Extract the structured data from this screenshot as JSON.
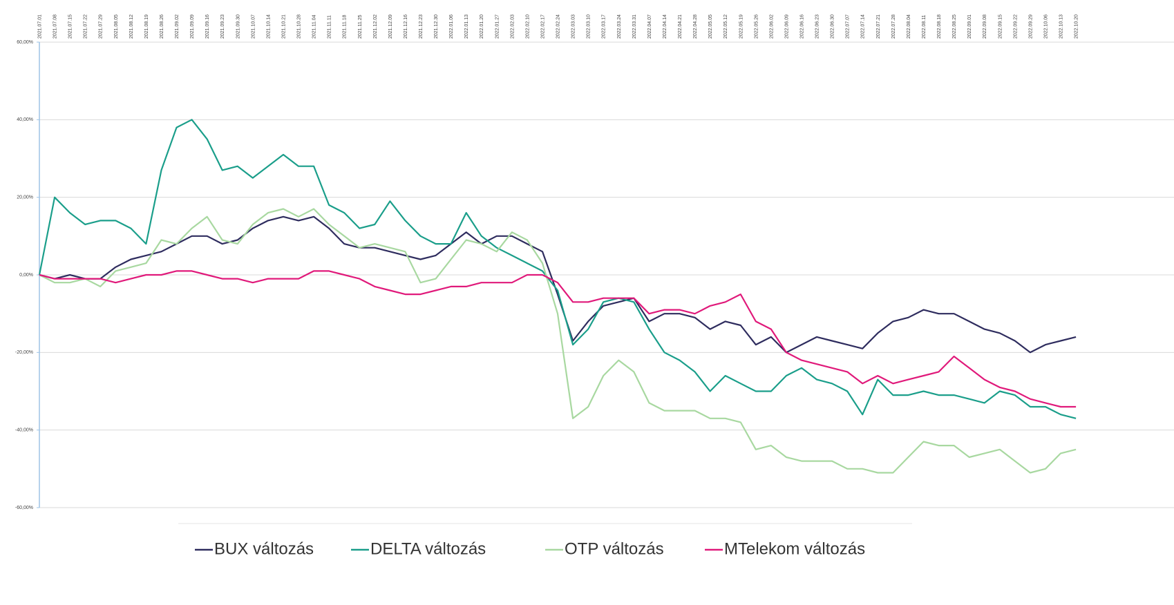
{
  "chart_data": {
    "type": "line",
    "categories": [
      "2021.07.01",
      "2021.07.08",
      "2021.07.15",
      "2021.07.22",
      "2021.07.29",
      "2021.08.05",
      "2021.08.12",
      "2021.08.19",
      "2021.08.26",
      "2021.09.02",
      "2021.09.09",
      "2021.09.16",
      "2021.09.23",
      "2021.09.30",
      "2021.10.07",
      "2021.10.14",
      "2021.10.21",
      "2021.10.28",
      "2021.11.04",
      "2021.11.11",
      "2021.11.18",
      "2021.11.25",
      "2021.12.02",
      "2021.12.09",
      "2021.12.16",
      "2021.12.23",
      "2021.12.30",
      "2022.01.06",
      "2022.01.13",
      "2022.01.20",
      "2022.01.27",
      "2022.02.03",
      "2022.02.10",
      "2022.02.17",
      "2022.02.24",
      "2022.03.03",
      "2022.03.10",
      "2022.03.17",
      "2022.03.24",
      "2022.03.31",
      "2022.04.07",
      "2022.04.14",
      "2022.04.21",
      "2022.04.28",
      "2022.05.05",
      "2022.05.12",
      "2022.05.19",
      "2022.05.26",
      "2022.06.02",
      "2022.06.09",
      "2022.06.16",
      "2022.06.23",
      "2022.06.30",
      "2022.07.07",
      "2022.07.14",
      "2022.07.21",
      "2022.07.28",
      "2022.08.04",
      "2022.08.11",
      "2022.08.18",
      "2022.08.25",
      "2022.09.01",
      "2022.09.08",
      "2022.09.15",
      "2022.09.22",
      "2022.09.29",
      "2022.10.06",
      "2022.10.13",
      "2022.10.20"
    ],
    "series": [
      {
        "name": "BUX változás",
        "color": "#2e2c5e",
        "values": [
          0,
          -1,
          0,
          -1,
          -1,
          2,
          4,
          5,
          6,
          8,
          10,
          10,
          8,
          9,
          12,
          14,
          15,
          14,
          15,
          12,
          8,
          7,
          7,
          6,
          5,
          4,
          5,
          8,
          11,
          8,
          10,
          10,
          8,
          6,
          -5,
          -17,
          -12,
          -8,
          -7,
          -6,
          -12,
          -10,
          -10,
          -11,
          -14,
          -12,
          -13,
          -18,
          -16,
          -20,
          -18,
          -16,
          -17,
          -18,
          -19,
          -15,
          -12,
          -11,
          -9,
          -10,
          -10,
          -12,
          -14,
          -15,
          -17,
          -20,
          -18,
          -17,
          -16
        ]
      },
      {
        "name": "DELTA változás",
        "color": "#1a9e8a",
        "values": [
          0,
          20,
          16,
          13,
          14,
          14,
          12,
          8,
          27,
          38,
          40,
          35,
          27,
          28,
          25,
          28,
          31,
          28,
          28,
          18,
          16,
          12,
          13,
          19,
          14,
          10,
          8,
          8,
          16,
          10,
          7,
          5,
          3,
          1,
          -4,
          -18,
          -14,
          -7,
          -6,
          -7,
          -14,
          -20,
          -22,
          -25,
          -30,
          -26,
          -28,
          -30,
          -30,
          -26,
          -24,
          -27,
          -28,
          -30,
          -36,
          -27,
          -31,
          -31,
          -30,
          -31,
          -31,
          -32,
          -33,
          -30,
          -31,
          -34,
          -34,
          -36,
          -37
        ]
      },
      {
        "name": "OTP változás",
        "color": "#a8d8a0",
        "values": [
          0,
          -2,
          -2,
          -1,
          -3,
          1,
          2,
          3,
          9,
          8,
          12,
          15,
          9,
          8,
          13,
          16,
          17,
          15,
          17,
          13,
          10,
          7,
          8,
          7,
          6,
          -2,
          -1,
          4,
          9,
          8,
          6,
          11,
          9,
          3,
          -10,
          -37,
          -34,
          -26,
          -22,
          -25,
          -33,
          -35,
          -35,
          -35,
          -37,
          -37,
          -38,
          -45,
          -44,
          -47,
          -48,
          -48,
          -48,
          -50,
          -50,
          -51,
          -51,
          -47,
          -43,
          -44,
          -44,
          -47,
          -46,
          -45,
          -48,
          -51,
          -50,
          -46,
          -45
        ]
      },
      {
        "name": "MTelekom változás",
        "color": "#e0197a",
        "values": [
          0,
          -1,
          -1,
          -1,
          -1,
          -2,
          -1,
          0,
          0,
          1,
          1,
          0,
          -1,
          -1,
          -2,
          -1,
          -1,
          -1,
          1,
          1,
          0,
          -1,
          -3,
          -4,
          -5,
          -5,
          -4,
          -3,
          -3,
          -2,
          -2,
          -2,
          0,
          0,
          -2,
          -7,
          -7,
          -6,
          -6,
          -6,
          -10,
          -9,
          -9,
          -10,
          -8,
          -7,
          -5,
          -12,
          -14,
          -20,
          -22,
          -23,
          -24,
          -25,
          -28,
          -26,
          -28,
          -27,
          -26,
          -25,
          -21,
          -24,
          -27,
          -29,
          -30,
          -32,
          -33,
          -34,
          -34
        ]
      }
    ],
    "ylim": [
      -60,
      60
    ],
    "yticks": [
      {
        "value": -60,
        "label": "-60,00%"
      },
      {
        "value": -40,
        "label": "-40,00%"
      },
      {
        "value": -20,
        "label": "-20,00%"
      },
      {
        "value": 0,
        "label": "0,00%"
      },
      {
        "value": 20,
        "label": "20,00%"
      },
      {
        "value": 40,
        "label": "40,00%"
      },
      {
        "value": 60,
        "label": "60,00%"
      }
    ],
    "grid": true
  }
}
